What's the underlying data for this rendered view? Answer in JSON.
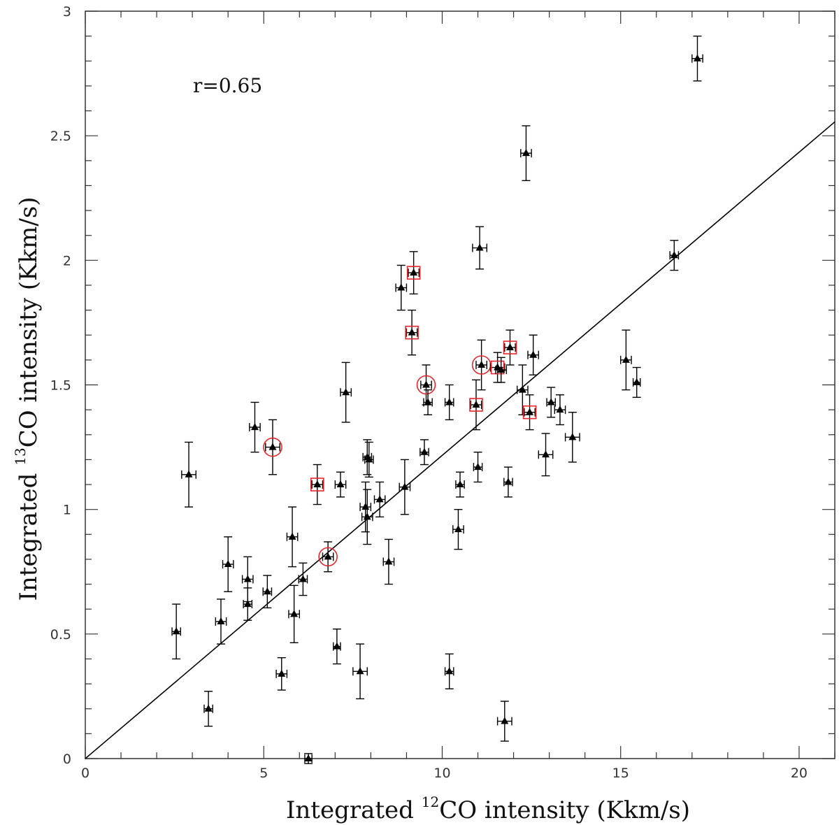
{
  "chart_data": {
    "type": "scatter",
    "title": "",
    "xlabel": {
      "prefix": "Integrated ",
      "sup": "12",
      "suffix": "CO intensity (Kkm/s)"
    },
    "ylabel": {
      "prefix": "Integrated ",
      "sup": "13",
      "suffix": "CO intensity (Kkm/s)"
    },
    "xlim": [
      0,
      21
    ],
    "ylim": [
      0,
      3
    ],
    "x_ticks": [
      "0",
      "5",
      "10",
      "15",
      "20"
    ],
    "y_ticks": [
      "0",
      "0.5",
      "1",
      "1.5",
      "2",
      "2.5",
      "3"
    ],
    "annotation": "r=0.65",
    "fit_line": {
      "slope": 0.1217,
      "intercept": 0
    },
    "colors": {
      "points": "#000000",
      "highlight": "#e8262c",
      "line": "#000000"
    },
    "points": [
      {
        "x": 17.15,
        "y": 2.81,
        "xerr": 0.15,
        "yerr": 0.09,
        "marker": "none"
      },
      {
        "x": 12.35,
        "y": 2.43,
        "xerr": 0.15,
        "yerr": 0.11,
        "marker": "none"
      },
      {
        "x": 16.5,
        "y": 2.02,
        "xerr": 0.12,
        "yerr": 0.06,
        "marker": "none"
      },
      {
        "x": 11.05,
        "y": 2.05,
        "xerr": 0.2,
        "yerr": 0.085,
        "marker": "none"
      },
      {
        "x": 9.2,
        "y": 1.95,
        "xerr": 0.15,
        "yerr": 0.085,
        "marker": "square"
      },
      {
        "x": 8.85,
        "y": 1.89,
        "xerr": 0.15,
        "yerr": 0.09,
        "marker": "none"
      },
      {
        "x": 9.15,
        "y": 1.71,
        "xerr": 0.15,
        "yerr": 0.09,
        "marker": "square"
      },
      {
        "x": 11.9,
        "y": 1.65,
        "xerr": 0.15,
        "yerr": 0.07,
        "marker": "square"
      },
      {
        "x": 12.55,
        "y": 1.62,
        "xerr": 0.15,
        "yerr": 0.08,
        "marker": "none"
      },
      {
        "x": 11.1,
        "y": 1.58,
        "xerr": 0.15,
        "yerr": 0.1,
        "marker": "circle"
      },
      {
        "x": 11.55,
        "y": 1.57,
        "xerr": 0.2,
        "yerr": 0.06,
        "marker": "square"
      },
      {
        "x": 11.65,
        "y": 1.56,
        "xerr": 0.15,
        "yerr": 0.05,
        "marker": "none"
      },
      {
        "x": 15.15,
        "y": 1.6,
        "xerr": 0.15,
        "yerr": 0.12,
        "marker": "none"
      },
      {
        "x": 15.45,
        "y": 1.51,
        "xerr": 0.1,
        "yerr": 0.06,
        "marker": "none"
      },
      {
        "x": 9.55,
        "y": 1.5,
        "xerr": 0.15,
        "yerr": 0.08,
        "marker": "circle"
      },
      {
        "x": 12.25,
        "y": 1.48,
        "xerr": 0.15,
        "yerr": 0.1,
        "marker": "none"
      },
      {
        "x": 7.3,
        "y": 1.47,
        "xerr": 0.15,
        "yerr": 0.12,
        "marker": "none"
      },
      {
        "x": 9.6,
        "y": 1.43,
        "xerr": 0.12,
        "yerr": 0.05,
        "marker": "none"
      },
      {
        "x": 10.2,
        "y": 1.43,
        "xerr": 0.12,
        "yerr": 0.07,
        "marker": "none"
      },
      {
        "x": 10.95,
        "y": 1.42,
        "xerr": 0.15,
        "yerr": 0.1,
        "marker": "square"
      },
      {
        "x": 13.05,
        "y": 1.43,
        "xerr": 0.12,
        "yerr": 0.06,
        "marker": "none"
      },
      {
        "x": 13.3,
        "y": 1.4,
        "xerr": 0.15,
        "yerr": 0.06,
        "marker": "none"
      },
      {
        "x": 12.45,
        "y": 1.39,
        "xerr": 0.15,
        "yerr": 0.07,
        "marker": "square"
      },
      {
        "x": 4.75,
        "y": 1.33,
        "xerr": 0.15,
        "yerr": 0.1,
        "marker": "none"
      },
      {
        "x": 13.65,
        "y": 1.29,
        "xerr": 0.2,
        "yerr": 0.1,
        "marker": "none"
      },
      {
        "x": 5.25,
        "y": 1.25,
        "xerr": 0.2,
        "yerr": 0.11,
        "marker": "circle"
      },
      {
        "x": 9.5,
        "y": 1.23,
        "xerr": 0.12,
        "yerr": 0.05,
        "marker": "none"
      },
      {
        "x": 12.9,
        "y": 1.22,
        "xerr": 0.2,
        "yerr": 0.085,
        "marker": "none"
      },
      {
        "x": 7.9,
        "y": 1.21,
        "xerr": 0.12,
        "yerr": 0.07,
        "marker": "none"
      },
      {
        "x": 7.95,
        "y": 1.2,
        "xerr": 0.12,
        "yerr": 0.07,
        "marker": "none"
      },
      {
        "x": 11.0,
        "y": 1.17,
        "xerr": 0.12,
        "yerr": 0.06,
        "marker": "none"
      },
      {
        "x": 2.9,
        "y": 1.14,
        "xerr": 0.2,
        "yerr": 0.13,
        "marker": "none"
      },
      {
        "x": 11.85,
        "y": 1.11,
        "xerr": 0.12,
        "yerr": 0.06,
        "marker": "none"
      },
      {
        "x": 6.5,
        "y": 1.1,
        "xerr": 0.15,
        "yerr": 0.08,
        "marker": "square"
      },
      {
        "x": 7.15,
        "y": 1.1,
        "xerr": 0.15,
        "yerr": 0.05,
        "marker": "none"
      },
      {
        "x": 10.5,
        "y": 1.1,
        "xerr": 0.12,
        "yerr": 0.05,
        "marker": "none"
      },
      {
        "x": 8.95,
        "y": 1.09,
        "xerr": 0.15,
        "yerr": 0.11,
        "marker": "none"
      },
      {
        "x": 8.25,
        "y": 1.04,
        "xerr": 0.15,
        "yerr": 0.07,
        "marker": "none"
      },
      {
        "x": 7.85,
        "y": 1.01,
        "xerr": 0.15,
        "yerr": 0.1,
        "marker": "none"
      },
      {
        "x": 7.9,
        "y": 0.97,
        "xerr": 0.15,
        "yerr": 0.11,
        "marker": "none"
      },
      {
        "x": 10.45,
        "y": 0.92,
        "xerr": 0.15,
        "yerr": 0.08,
        "marker": "none"
      },
      {
        "x": 5.8,
        "y": 0.89,
        "xerr": 0.15,
        "yerr": 0.12,
        "marker": "none"
      },
      {
        "x": 6.8,
        "y": 0.81,
        "xerr": 0.15,
        "yerr": 0.06,
        "marker": "circle"
      },
      {
        "x": 8.5,
        "y": 0.79,
        "xerr": 0.15,
        "yerr": 0.09,
        "marker": "none"
      },
      {
        "x": 4.0,
        "y": 0.78,
        "xerr": 0.15,
        "yerr": 0.11,
        "marker": "none"
      },
      {
        "x": 4.55,
        "y": 0.72,
        "xerr": 0.15,
        "yerr": 0.09,
        "marker": "none"
      },
      {
        "x": 6.1,
        "y": 0.72,
        "xerr": 0.12,
        "yerr": 0.065,
        "marker": "none"
      },
      {
        "x": 5.1,
        "y": 0.67,
        "xerr": 0.12,
        "yerr": 0.065,
        "marker": "none"
      },
      {
        "x": 4.55,
        "y": 0.62,
        "xerr": 0.12,
        "yerr": 0.065,
        "marker": "none"
      },
      {
        "x": 5.85,
        "y": 0.58,
        "xerr": 0.15,
        "yerr": 0.115,
        "marker": "none"
      },
      {
        "x": 3.8,
        "y": 0.55,
        "xerr": 0.15,
        "yerr": 0.09,
        "marker": "none"
      },
      {
        "x": 2.55,
        "y": 0.51,
        "xerr": 0.12,
        "yerr": 0.11,
        "marker": "none"
      },
      {
        "x": 7.05,
        "y": 0.45,
        "xerr": 0.1,
        "yerr": 0.07,
        "marker": "none"
      },
      {
        "x": 7.7,
        "y": 0.35,
        "xerr": 0.2,
        "yerr": 0.11,
        "marker": "none"
      },
      {
        "x": 5.5,
        "y": 0.34,
        "xerr": 0.15,
        "yerr": 0.065,
        "marker": "none"
      },
      {
        "x": 10.2,
        "y": 0.35,
        "xerr": 0.12,
        "yerr": 0.07,
        "marker": "none"
      },
      {
        "x": 3.45,
        "y": 0.2,
        "xerr": 0.12,
        "yerr": 0.07,
        "marker": "none"
      },
      {
        "x": 11.75,
        "y": 0.15,
        "xerr": 0.2,
        "yerr": 0.08,
        "marker": "none"
      },
      {
        "x": 6.25,
        "y": 0.0,
        "xerr": 0.1,
        "yerr": 0.02,
        "marker": "none"
      }
    ]
  }
}
